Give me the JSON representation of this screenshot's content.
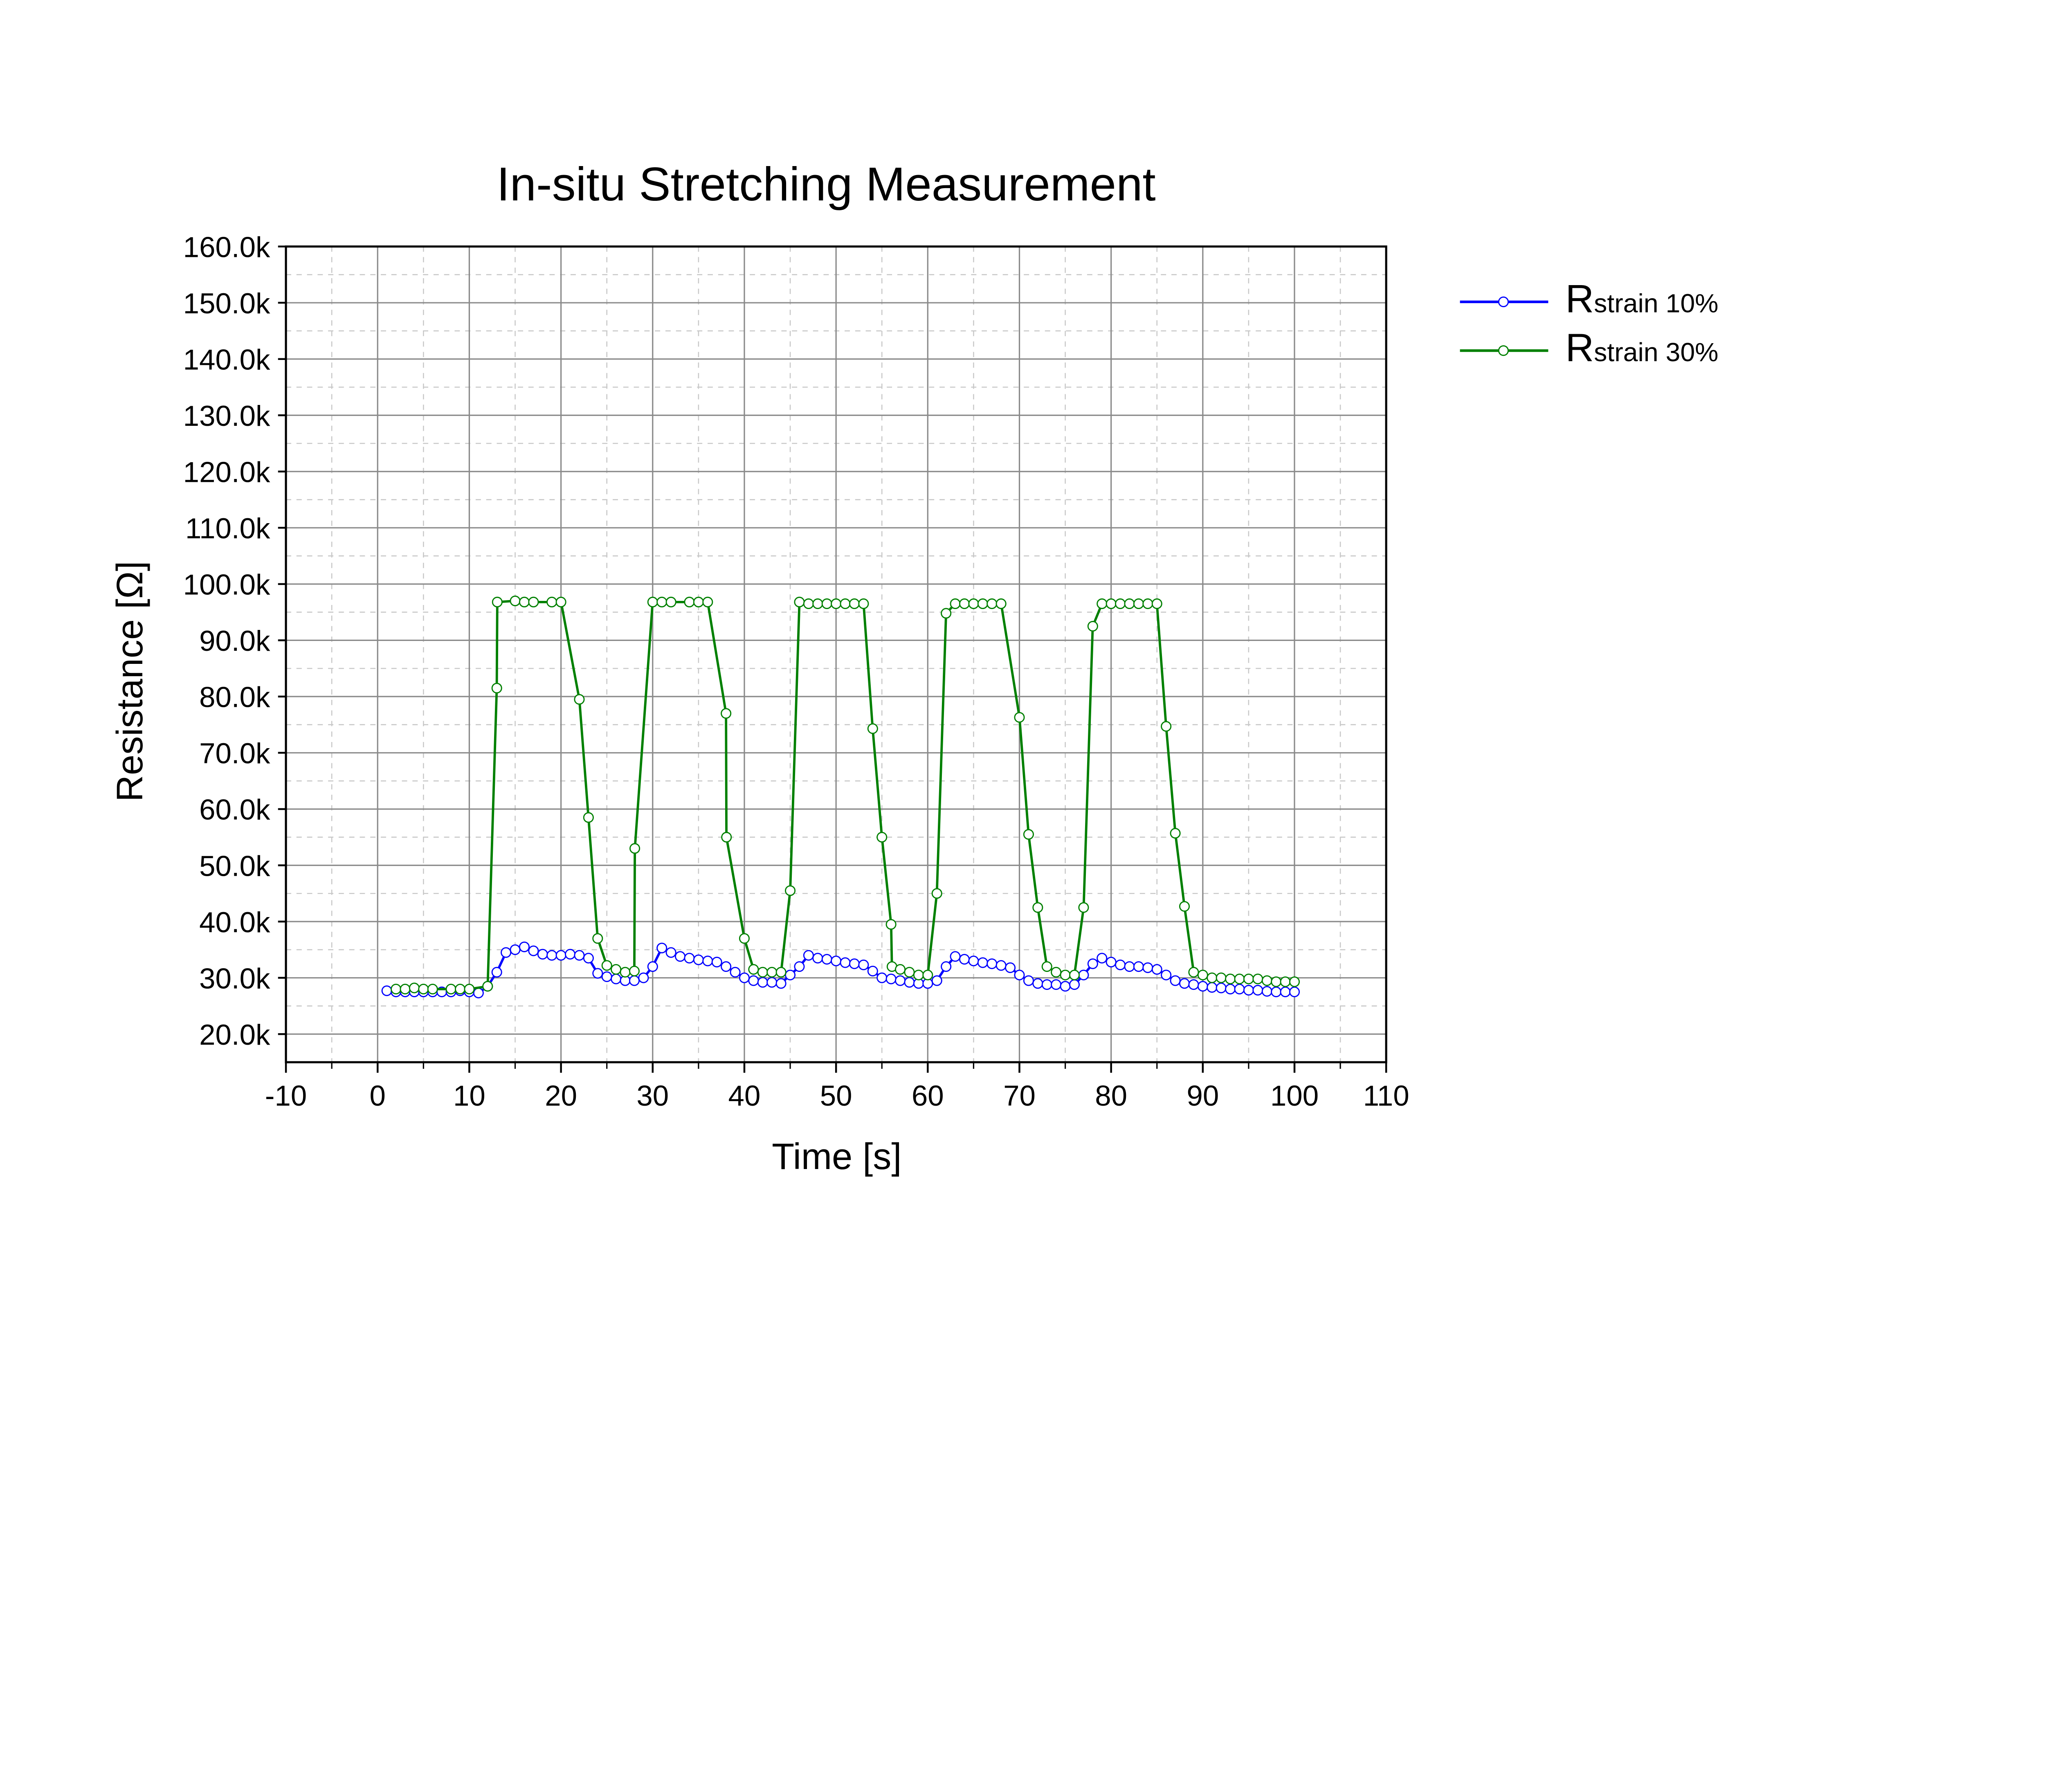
{
  "chart_data": {
    "type": "line",
    "title": "In-situ Stretching Measurement",
    "xlabel": "Time [s]",
    "ylabel": "Resistance [Ω]",
    "xlim": [
      -10,
      110
    ],
    "ylim": [
      15000,
      160000
    ],
    "x_ticks": [
      -10,
      0,
      10,
      20,
      30,
      40,
      50,
      60,
      70,
      80,
      90,
      100,
      110
    ],
    "x_tick_labels": [
      "-10",
      "0",
      "10",
      "20",
      "30",
      "40",
      "50",
      "60",
      "70",
      "80",
      "90",
      "100",
      "110"
    ],
    "y_ticks": [
      20000,
      30000,
      40000,
      50000,
      60000,
      70000,
      80000,
      90000,
      100000,
      110000,
      120000,
      130000,
      140000,
      150000,
      160000
    ],
    "y_tick_labels": [
      "20.0k",
      "30.0k",
      "40.0k",
      "50.0k",
      "60.0k",
      "70.0k",
      "80.0k",
      "90.0k",
      "100.0k",
      "110.0k",
      "120.0k",
      "130.0k",
      "140.0k",
      "150.0k",
      "160.0k"
    ],
    "grid": true,
    "legend_position": "outside-right",
    "series": [
      {
        "name": "Rstrain 10%",
        "color": "#0000ff",
        "marker": "open-circle",
        "x": [
          1,
          2,
          3,
          4,
          5,
          6,
          7,
          8,
          9,
          10,
          11,
          12,
          13,
          14,
          15,
          16,
          17,
          18,
          19,
          20,
          21,
          22,
          23,
          24,
          25,
          26,
          27,
          28,
          29,
          30,
          31,
          32,
          33,
          34,
          35,
          36,
          37,
          38,
          39,
          40,
          41,
          42,
          43,
          44,
          45,
          46,
          47,
          48,
          49,
          50,
          51,
          52,
          53,
          54,
          55,
          56,
          57,
          58,
          59,
          60,
          61,
          62,
          63,
          64,
          65,
          66,
          67,
          68,
          69,
          70,
          71,
          72,
          73,
          74,
          75,
          76,
          77,
          78,
          79,
          80,
          81,
          82,
          83,
          84,
          85,
          86,
          87,
          88,
          89,
          90,
          91,
          92,
          93,
          94,
          95,
          96,
          97,
          98,
          99,
          100
        ],
        "y": [
          27700,
          27500,
          27500,
          27500,
          27500,
          27500,
          27500,
          27500,
          27700,
          27500,
          27300,
          28500,
          31000,
          34500,
          35000,
          35500,
          34800,
          34200,
          34000,
          34000,
          34200,
          34000,
          33500,
          30800,
          30200,
          29800,
          29500,
          29500,
          30000,
          32000,
          35300,
          34500,
          33800,
          33500,
          33200,
          33000,
          32800,
          32000,
          31000,
          30000,
          29500,
          29200,
          29200,
          29000,
          30500,
          32000,
          34000,
          33500,
          33300,
          33000,
          32700,
          32500,
          32300,
          31200,
          30000,
          29800,
          29500,
          29200,
          29000,
          29000,
          29500,
          32000,
          33800,
          33300,
          33000,
          32700,
          32500,
          32200,
          31800,
          30500,
          29500,
          29000,
          28800,
          28800,
          28500,
          28800,
          30500,
          32500,
          33500,
          32800,
          32300,
          32000,
          32000,
          31800,
          31500,
          30500,
          29500,
          29000,
          28800,
          28500,
          28300,
          28200,
          28000,
          28000,
          27800,
          27800,
          27600,
          27500,
          27500,
          27500
        ]
      },
      {
        "name": "Rstrain 30%",
        "color": "#008000",
        "marker": "open-circle",
        "x": [
          2,
          3,
          4,
          5,
          6,
          8,
          9,
          10,
          12,
          13,
          13.05,
          15,
          16,
          17,
          19,
          20,
          22,
          23,
          24,
          25,
          26,
          27,
          28,
          28.05,
          30,
          31,
          32,
          34,
          35,
          36,
          38,
          38.05,
          40,
          41,
          42,
          43,
          44,
          45,
          46,
          47,
          48,
          49,
          50,
          51,
          52,
          53,
          54,
          55,
          56,
          56.1,
          57,
          58,
          59,
          60,
          61,
          62,
          63,
          64,
          65,
          66,
          67,
          68,
          70,
          71,
          72,
          73,
          74,
          75,
          76,
          77,
          78,
          79,
          80,
          81,
          82,
          83,
          84,
          85,
          86,
          87,
          88,
          89,
          90,
          91,
          92,
          93,
          94,
          95,
          96,
          97,
          98,
          99,
          100
        ],
        "y": [
          28000,
          28000,
          28200,
          28000,
          28000,
          28000,
          28000,
          28000,
          28500,
          81500,
          96800,
          97000,
          96800,
          96800,
          96800,
          96800,
          79500,
          58500,
          37000,
          32200,
          31500,
          31000,
          31200,
          53000,
          96800,
          96800,
          96800,
          96800,
          96800,
          96800,
          77000,
          55000,
          37000,
          31500,
          31000,
          31000,
          31000,
          45500,
          96800,
          96500,
          96500,
          96500,
          96500,
          96500,
          96500,
          96500,
          74300,
          55000,
          39500,
          32000,
          31500,
          31000,
          30500,
          30500,
          45000,
          94800,
          96500,
          96500,
          96500,
          96500,
          96500,
          96500,
          76300,
          55500,
          42500,
          32000,
          31000,
          30500,
          30500,
          42500,
          92500,
          96500,
          96500,
          96500,
          96500,
          96500,
          96500,
          96500,
          74700,
          55700,
          42700,
          31000,
          30500,
          30000,
          30000,
          29800,
          29800,
          29800,
          29800,
          29500,
          29300,
          29300,
          29300
        ]
      }
    ]
  }
}
